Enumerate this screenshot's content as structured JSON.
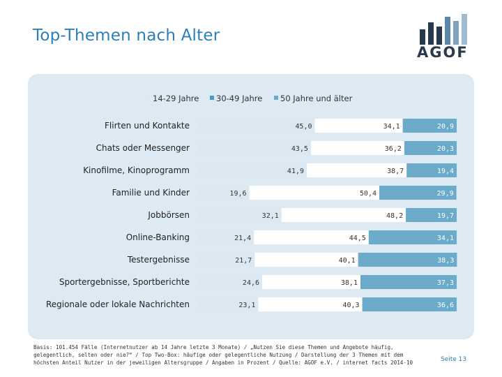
{
  "slide": {
    "title": "Top-Themen nach Alter",
    "logo_text": "AGOF",
    "footnote": "Basis: 101.454 Fälle (Internetnutzer ab 14 Jahre letzte 3 Monate) / „Nutzen Sie diese Themen und Angebote häufig, gelegentlich, selten oder nie?“ / Top Two-Box: häufige oder gelegentliche Nutzung / Darstellung der 3 Themen mit dem höchsten Anteil Nutzer in der jeweiligen Altersgruppe / Angaben in Prozent / Quelle: AGOF e.V. / internet facts 2014-10",
    "page_number": "Seite 13"
  },
  "colors": {
    "series1": "#dbe8f2",
    "series2": "#ffffff",
    "series3": "#6baac9",
    "title": "#2b7fb8",
    "panel": "#dde9f3"
  },
  "chart_data": {
    "type": "bar",
    "orientation": "horizontal-stacked",
    "categories": [
      "Flirten und Kontakte",
      "Chats oder Messenger",
      "Kinofilme, Kinoprogramm",
      "Familie und Kinder",
      "Jobbörsen",
      "Online-Banking",
      "Testergebnisse",
      "Sportergebnisse, Sportberichte",
      "Regionale oder lokale Nachrichten"
    ],
    "series": [
      {
        "name": "14-29 Jahre",
        "values": [
          45.0,
          43.5,
          41.9,
          19.6,
          32.1,
          21.4,
          21.7,
          24.6,
          23.1
        ],
        "labels": [
          "45,0",
          "43,5",
          "41,9",
          "19,6",
          "32,1",
          "21,4",
          "21,7",
          "24,6",
          "23,1"
        ]
      },
      {
        "name": "30-49 Jahre",
        "values": [
          34.1,
          36.2,
          38.7,
          50.4,
          48.2,
          44.5,
          40.1,
          38.1,
          40.3
        ],
        "labels": [
          "34,1",
          "36,2",
          "38,7",
          "50,4",
          "48,2",
          "44,5",
          "40,1",
          "38,1",
          "40,3"
        ]
      },
      {
        "name": "50 Jahre und älter",
        "values": [
          20.9,
          20.3,
          19.4,
          29.9,
          19.7,
          34.1,
          38.3,
          37.3,
          36.6
        ],
        "labels": [
          "20,9",
          "20,3",
          "19,4",
          "29,9",
          "19,7",
          "34,1",
          "38,3",
          "37,3",
          "36,6"
        ]
      }
    ],
    "xlim": [
      0,
      100
    ],
    "legend": "top-center"
  }
}
